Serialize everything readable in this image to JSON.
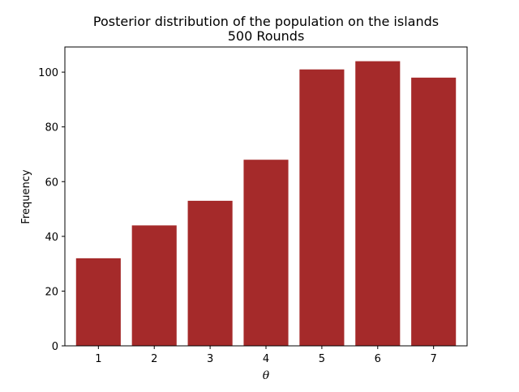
{
  "chart_data": {
    "type": "bar",
    "title": "Posterior distribution of the population on the islands",
    "subtitle": "500 Rounds",
    "xlabel": "θ",
    "ylabel": "Frequency",
    "categories": [
      "1",
      "2",
      "3",
      "4",
      "5",
      "6",
      "7"
    ],
    "values": [
      32,
      44,
      53,
      68,
      101,
      104,
      98
    ],
    "xlim": [
      0.4,
      7.6
    ],
    "ylim": [
      0,
      109.2
    ],
    "yticks": [
      0,
      20,
      40,
      60,
      80,
      100
    ],
    "bar_color": "#a52a2a",
    "grid": false,
    "legend": "none"
  }
}
